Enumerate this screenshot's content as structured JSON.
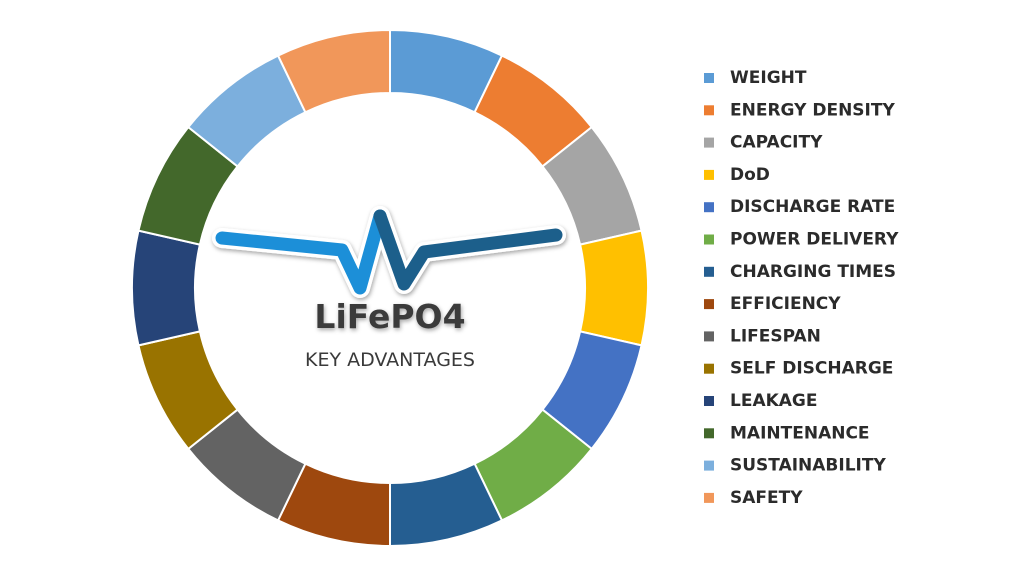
{
  "chart_data": {
    "type": "donut",
    "title": "LiFePO4",
    "subtitle": "KEY ADVANTAGES",
    "categories": [
      "WEIGHT",
      "ENERGY DENSITY",
      "CAPACITY",
      "DoD",
      "DISCHARGE RATE",
      "POWER DELIVERY",
      "CHARGING TIMES",
      "EFFICIENCY",
      "LIFESPAN",
      "SELF DISCHARGE",
      "LEAKAGE",
      "MAINTENANCE",
      "SUSTAINABILITY",
      "SAFETY"
    ],
    "values": [
      1,
      1,
      1,
      1,
      1,
      1,
      1,
      1,
      1,
      1,
      1,
      1,
      1,
      1
    ],
    "colors": [
      "#5b9bd5",
      "#ed7d31",
      "#a5a5a5",
      "#ffc000",
      "#4472c4",
      "#70ad47",
      "#255e91",
      "#9e480e",
      "#636363",
      "#997300",
      "#264478",
      "#43682b",
      "#7cafdd",
      "#f1975a"
    ],
    "legend": "right"
  }
}
